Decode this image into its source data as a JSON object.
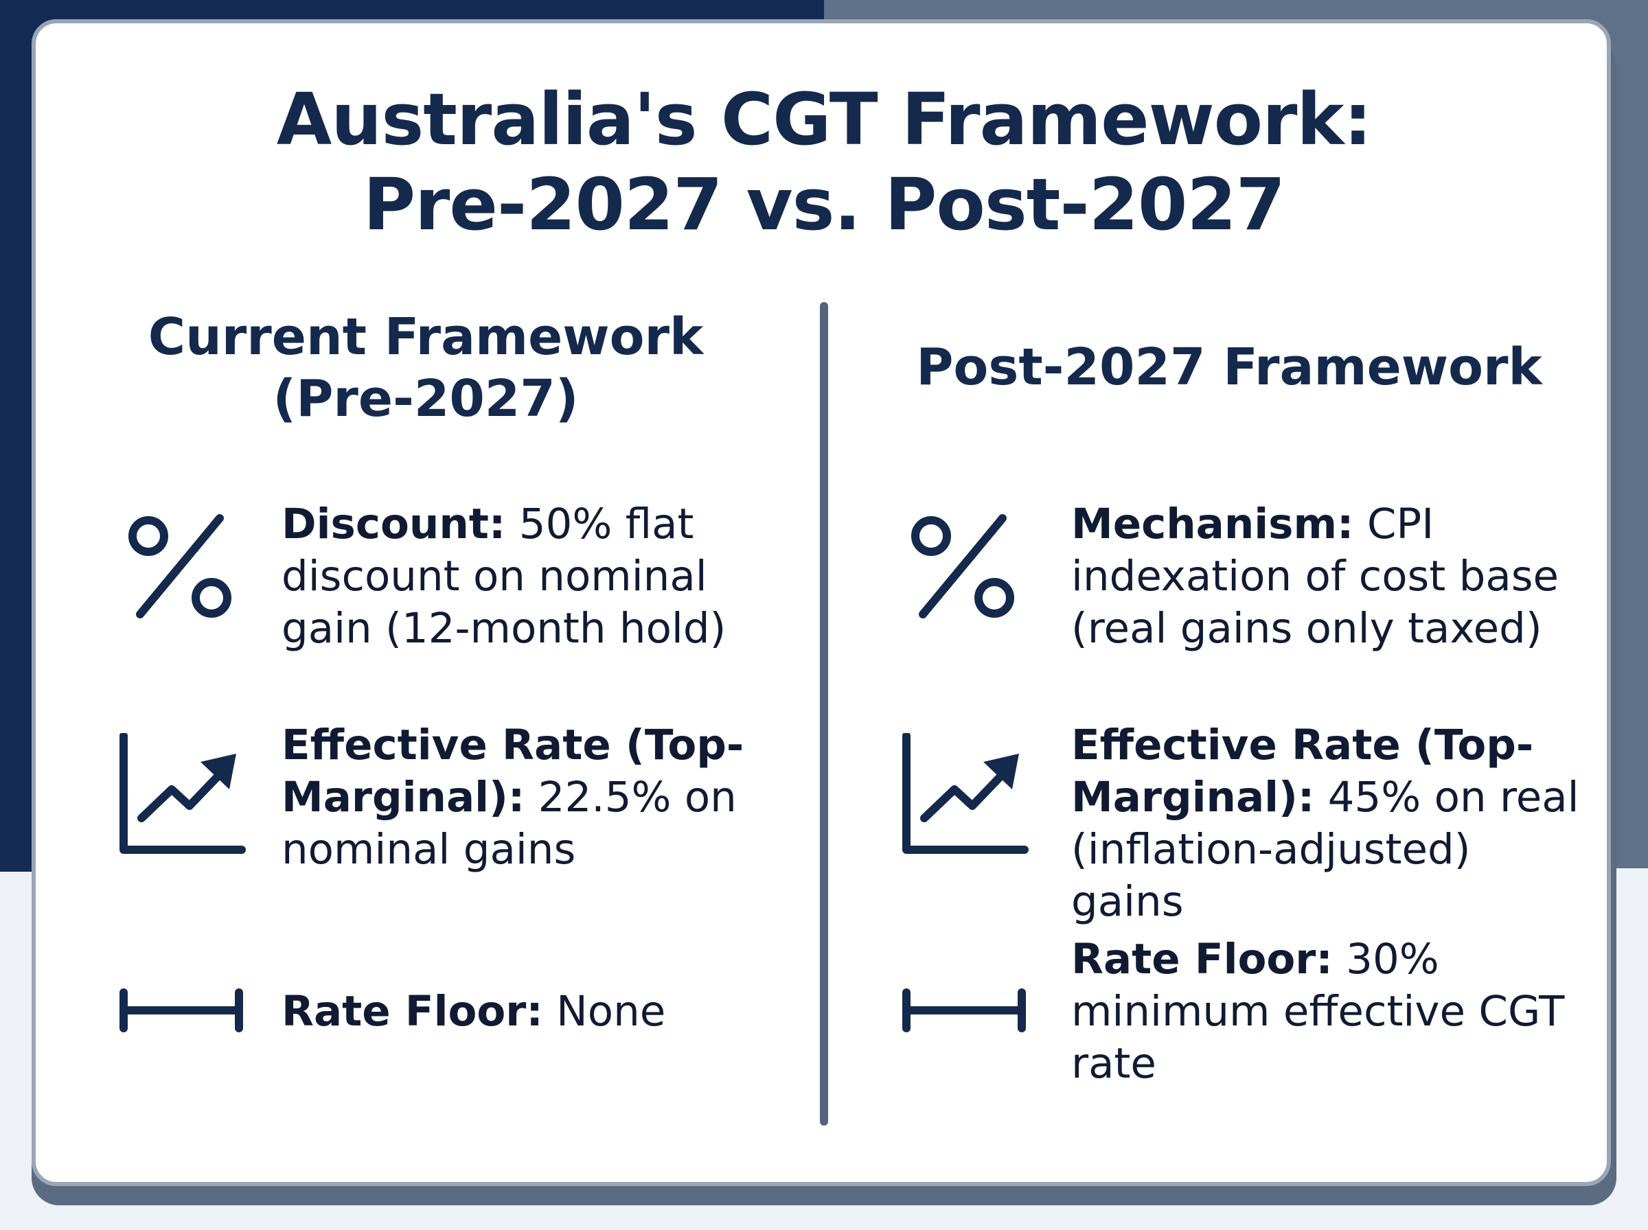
{
  "title_line1": "Australia's CGT Framework:",
  "title_line2": "Pre-2027 vs. Post-2027",
  "colors": {
    "navy": "#15294d",
    "divider": "#54657b",
    "background_left": "#132b52",
    "background_right": "#5f7189"
  },
  "left": {
    "heading_line1": "Current Framework",
    "heading_line2": "(Pre-2027)",
    "items": [
      {
        "icon": "percent-icon",
        "label": "Discount:",
        "text": " 50% flat discount on nominal gain (12-month hold)"
      },
      {
        "icon": "trending-up-chart-icon",
        "label": "Effective Rate (Top-Marginal):",
        "text": " 22.5% on nominal gains"
      },
      {
        "icon": "horizontal-range-icon",
        "label": "Rate Floor:",
        "text": " None"
      }
    ]
  },
  "right": {
    "heading": "Post-2027 Framework",
    "items": [
      {
        "icon": "percent-icon",
        "label": "Mechanism:",
        "text": " CPI indexation of cost base (real gains only taxed)"
      },
      {
        "icon": "trending-up-chart-icon",
        "label": "Effective Rate (Top-Marginal):",
        "text": " 45% on real (inflation-adjusted) gains"
      },
      {
        "icon": "horizontal-range-icon",
        "label": "Rate Floor:",
        "text": " 30% minimum effective CGT rate"
      }
    ]
  }
}
